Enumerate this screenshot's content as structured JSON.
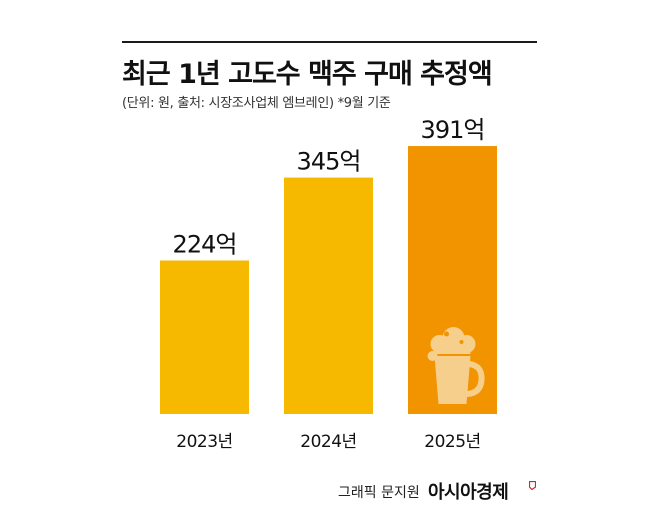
{
  "title": "최근 1년 고도수 맥주 구매 추정액",
  "subtitle": "(단위: 원, 출처: 시장조사업체 엠브레인)  *9월 기준",
  "credit": "그래픽 문지원",
  "brand": "아시아경제",
  "colors": {
    "bar_default": "#f7b800",
    "bar_highlight": "#f29400",
    "beer_icon": "#f6cf8c"
  },
  "chart_data": {
    "type": "bar",
    "title": "최근 1년 고도수 맥주 구매 추정액",
    "categories": [
      "2023년",
      "2024년",
      "2025년"
    ],
    "values": [
      224,
      345,
      391
    ],
    "value_labels": [
      "224억",
      "345억",
      "391억"
    ],
    "unit": "억",
    "ylim": [
      0,
      400
    ],
    "grid": false,
    "highlight_index": 2,
    "icon": "beer-mug-icon"
  }
}
